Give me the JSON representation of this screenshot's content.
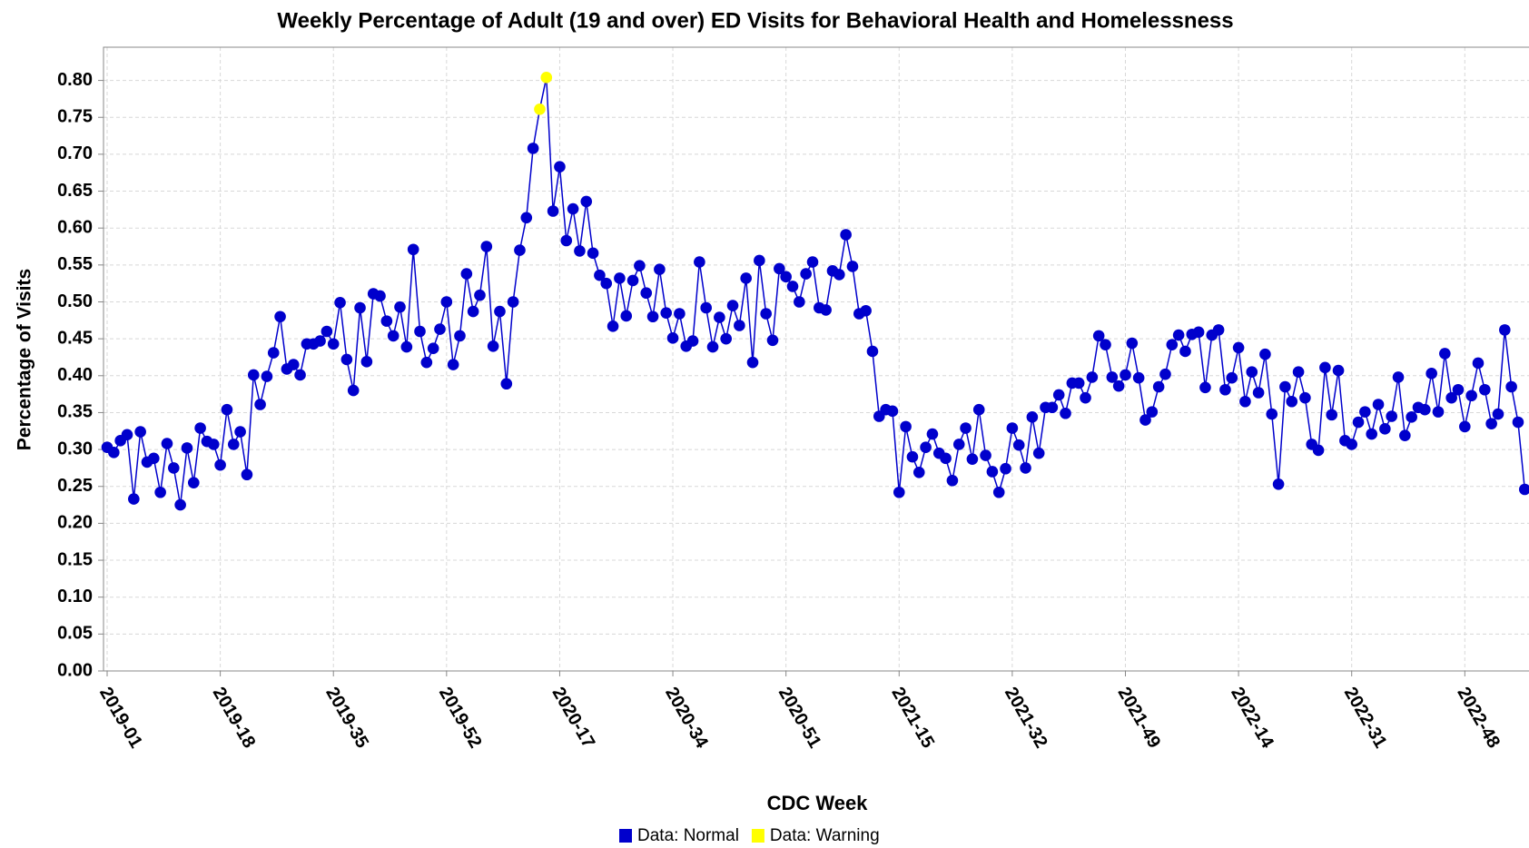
{
  "chart_data": {
    "type": "line",
    "title": "Weekly Percentage of Adult (19 and over) ED Visits for Behavioral Health and Homelessness",
    "x_label": "CDC Week",
    "y_label": "Percentage of Visits",
    "categories": [
      "2019-01",
      null,
      null,
      null,
      null,
      null,
      null,
      null,
      null,
      null,
      null,
      null,
      null,
      null,
      null,
      null,
      null,
      "2019-18",
      null,
      null,
      null,
      null,
      null,
      null,
      null,
      null,
      null,
      null,
      null,
      null,
      null,
      null,
      null,
      null,
      "2019-35",
      null,
      null,
      null,
      null,
      null,
      null,
      null,
      null,
      null,
      null,
      null,
      null,
      null,
      null,
      null,
      null,
      "2019-52",
      null,
      null,
      null,
      null,
      null,
      null,
      null,
      null,
      null,
      null,
      null,
      null,
      null,
      null,
      null,
      null,
      "2020-17",
      null,
      null,
      null,
      null,
      null,
      null,
      null,
      null,
      null,
      null,
      null,
      null,
      null,
      null,
      null,
      null,
      "2020-34",
      null,
      null,
      null,
      null,
      null,
      null,
      null,
      null,
      null,
      null,
      null,
      null,
      null,
      null,
      null,
      null,
      "2020-51",
      null,
      null,
      null,
      null,
      null,
      null,
      null,
      null,
      null,
      null,
      null,
      null,
      null,
      null,
      null,
      null,
      "2021-15",
      null,
      null,
      null,
      null,
      null,
      null,
      null,
      null,
      null,
      null,
      null,
      null,
      null,
      null,
      null,
      null,
      "2021-32",
      null,
      null,
      null,
      null,
      null,
      null,
      null,
      null,
      null,
      null,
      null,
      null,
      null,
      null,
      null,
      null,
      "2021-49",
      null,
      null,
      null,
      null,
      null,
      null,
      null,
      null,
      null,
      null,
      null,
      null,
      null,
      null,
      null,
      null,
      "2022-14",
      null,
      null,
      null,
      null,
      null,
      null,
      null,
      null,
      null,
      null,
      null,
      null,
      null,
      null,
      null,
      null,
      "2022-31",
      null,
      null,
      null,
      null,
      null,
      null,
      null,
      null,
      null,
      null,
      null,
      null,
      null,
      null,
      null,
      null,
      "2022-48",
      null,
      null,
      null,
      null,
      null,
      null,
      null,
      null,
      null
    ],
    "series": [
      {
        "name": "Data: Normal",
        "color": "#0000cc",
        "values": [
          0.303,
          0.296,
          0.312,
          0.32,
          0.233,
          0.324,
          0.283,
          0.288,
          0.242,
          0.308,
          0.275,
          0.225,
          0.302,
          0.255,
          0.329,
          0.311,
          0.307,
          0.279,
          0.354,
          0.307,
          0.324,
          0.266,
          0.401,
          0.361,
          0.399,
          0.431,
          0.48,
          0.409,
          0.415,
          0.401,
          0.443,
          0.443,
          0.447,
          0.46,
          0.443,
          0.499,
          0.422,
          0.38,
          0.492,
          0.419,
          0.511,
          0.508,
          0.474,
          0.454,
          0.493,
          0.439,
          0.571,
          0.46,
          0.418,
          0.437,
          0.463,
          0.5,
          0.415,
          0.454,
          0.538,
          0.487,
          0.509,
          0.575,
          0.44,
          0.487,
          0.389,
          0.5,
          0.57,
          0.614,
          0.708,
          null,
          null,
          0.623,
          0.683,
          0.583,
          0.626,
          0.569,
          0.636,
          0.566,
          0.536,
          0.525,
          0.467,
          0.532,
          0.481,
          0.529,
          0.549,
          0.512,
          0.48,
          0.544,
          0.485,
          0.451,
          0.484,
          0.44,
          0.447,
          0.554,
          0.492,
          0.439,
          0.479,
          0.45,
          0.495,
          0.468,
          0.532,
          0.418,
          0.556,
          0.484,
          0.448,
          0.545,
          0.534,
          0.521,
          0.5,
          0.538,
          0.554,
          0.492,
          0.489,
          0.542,
          0.537,
          0.591,
          0.548,
          0.484,
          0.488,
          0.433,
          0.345,
          0.354,
          0.352,
          0.242,
          0.331,
          0.29,
          0.269,
          0.303,
          0.321,
          0.295,
          0.288,
          0.258,
          0.307,
          0.329,
          0.287,
          0.354,
          0.292,
          0.27,
          0.242,
          0.274,
          0.329,
          0.306,
          0.275,
          0.344,
          0.295,
          0.357,
          0.357,
          0.374,
          0.349,
          0.39,
          0.39,
          0.37,
          0.398,
          0.454,
          0.442,
          0.398,
          0.386,
          0.401,
          0.444,
          0.397,
          0.34,
          0.351,
          0.385,
          0.402,
          0.442,
          0.455,
          0.433,
          0.456,
          0.459,
          0.384,
          0.455,
          0.462,
          0.381,
          0.397,
          0.438,
          0.365,
          0.405,
          0.377,
          0.429,
          0.348,
          0.253,
          0.385,
          0.365,
          0.405,
          0.37,
          0.307,
          0.299,
          0.411,
          0.347,
          0.407,
          0.312,
          0.307,
          0.337,
          0.351,
          0.321,
          0.361,
          0.328,
          0.345,
          0.398,
          0.319,
          0.344,
          0.357,
          0.354,
          0.403,
          0.351,
          0.43,
          0.37,
          0.381,
          0.331,
          0.373,
          0.417,
          0.381,
          0.335,
          0.348,
          0.462,
          0.385,
          0.337,
          0.246
        ]
      },
      {
        "name": "Data: Warning",
        "color": "#ffff00",
        "values": [
          null,
          null,
          null,
          null,
          null,
          null,
          null,
          null,
          null,
          null,
          null,
          null,
          null,
          null,
          null,
          null,
          null,
          null,
          null,
          null,
          null,
          null,
          null,
          null,
          null,
          null,
          null,
          null,
          null,
          null,
          null,
          null,
          null,
          null,
          null,
          null,
          null,
          null,
          null,
          null,
          null,
          null,
          null,
          null,
          null,
          null,
          null,
          null,
          null,
          null,
          null,
          null,
          null,
          null,
          null,
          null,
          null,
          null,
          null,
          null,
          null,
          null,
          null,
          null,
          null,
          0.761,
          0.804,
          null,
          null,
          null,
          null,
          null,
          null,
          null,
          null,
          null,
          null,
          null,
          null,
          null,
          null,
          null,
          null,
          null,
          null,
          null,
          null,
          null,
          null,
          null,
          null,
          null,
          null,
          null,
          null,
          null,
          null,
          null,
          null,
          null,
          null,
          null,
          null,
          null,
          null,
          null,
          null,
          null,
          null,
          null,
          null,
          null,
          null,
          null,
          null,
          null,
          null,
          null,
          null,
          null,
          null,
          null,
          null,
          null,
          null,
          null,
          null,
          null,
          null,
          null,
          null,
          null,
          null,
          null,
          null,
          null,
          null,
          null,
          null,
          null,
          null,
          null,
          null,
          null,
          null,
          null,
          null,
          null,
          null,
          null,
          null,
          null,
          null,
          null,
          null,
          null,
          null,
          null,
          null,
          null,
          null,
          null,
          null,
          null,
          null,
          null,
          null,
          null,
          null,
          null,
          null,
          null,
          null,
          null,
          null,
          null,
          null,
          null,
          null,
          null,
          null,
          null,
          null,
          null,
          null,
          null,
          null,
          null,
          null,
          null,
          null,
          null,
          null,
          null,
          null,
          null,
          null,
          null,
          null,
          null,
          null,
          null,
          null,
          null,
          null,
          null,
          null,
          null,
          null,
          null,
          null,
          null,
          null,
          null
        ]
      }
    ],
    "line_color": "#0000cc",
    "ylim": [
      0,
      0.845
    ],
    "yticks": [
      {
        "value": 0,
        "label": "0.00"
      },
      {
        "value": 0.05,
        "label": "0.05"
      },
      {
        "value": 0.1,
        "label": "0.10"
      },
      {
        "value": 0.15,
        "label": "0.15"
      },
      {
        "value": 0.2,
        "label": "0.20"
      },
      {
        "value": 0.25,
        "label": "0.25"
      },
      {
        "value": 0.3,
        "label": "0.30"
      },
      {
        "value": 0.35,
        "label": "0.35"
      },
      {
        "value": 0.4,
        "label": "0.40"
      },
      {
        "value": 0.45,
        "label": "0.45"
      },
      {
        "value": 0.5,
        "label": "0.50"
      },
      {
        "value": 0.55,
        "label": "0.55"
      },
      {
        "value": 0.6,
        "label": "0.60"
      },
      {
        "value": 0.65,
        "label": "0.65"
      },
      {
        "value": 0.7,
        "label": "0.70"
      },
      {
        "value": 0.75,
        "label": "0.75"
      },
      {
        "value": 0.8,
        "label": "0.80"
      }
    ],
    "grid": true
  }
}
